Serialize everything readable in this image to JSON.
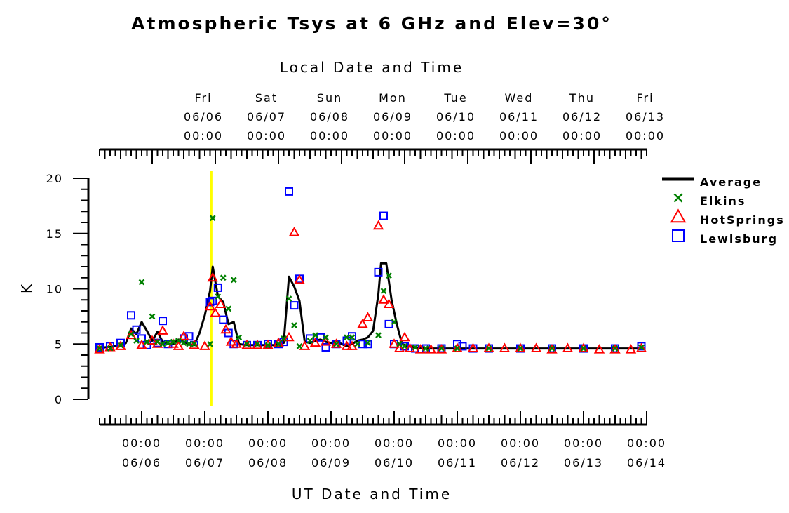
{
  "chart_data": {
    "type": "line",
    "title": "Atmospheric Tsys at 6 GHz and Elev=30°",
    "xlabel_bottom": "UT Date and Time",
    "xlabel_top": "Local Date and Time",
    "ylabel": "K",
    "ylim": [
      0,
      20
    ],
    "yticks": [
      0,
      5,
      10,
      15,
      20
    ],
    "xlim": [
      "2014-06-05T08:00",
      "2014-06-14T00:00"
    ],
    "bottom_ticks": [
      {
        "date": "06/06",
        "time": "00:00"
      },
      {
        "date": "06/07",
        "time": "00:00"
      },
      {
        "date": "06/08",
        "time": "00:00"
      },
      {
        "date": "06/09",
        "time": "00:00"
      },
      {
        "date": "06/10",
        "time": "00:00"
      },
      {
        "date": "06/11",
        "time": "00:00"
      },
      {
        "date": "06/12",
        "time": "00:00"
      },
      {
        "date": "06/13",
        "time": "00:00"
      },
      {
        "date": "06/14",
        "time": "00:00"
      }
    ],
    "top_ticks": [
      {
        "day": "Fri",
        "date": "06/06",
        "time": "00:00"
      },
      {
        "day": "Sat",
        "date": "06/07",
        "time": "00:00"
      },
      {
        "day": "Sun",
        "date": "06/08",
        "time": "00:00"
      },
      {
        "day": "Mon",
        "date": "06/09",
        "time": "00:00"
      },
      {
        "day": "Tue",
        "date": "06/10",
        "time": "00:00"
      },
      {
        "day": "Wed",
        "date": "06/11",
        "time": "00:00"
      },
      {
        "day": "Thu",
        "date": "06/12",
        "time": "00:00"
      },
      {
        "day": "Fri",
        "date": "06/13",
        "time": "00:00"
      }
    ],
    "marker_line": {
      "x": "2014-06-07T02:30",
      "color": "#ffff00"
    },
    "legend": {
      "position": "right"
    },
    "series": [
      {
        "name": "Average",
        "style": "line",
        "color": "#000000",
        "points": [
          [
            "2014-06-05T08:00",
            4.6
          ],
          [
            "2014-06-05T10:00",
            4.7
          ],
          [
            "2014-06-05T14:00",
            4.8
          ],
          [
            "2014-06-05T18:00",
            5.1
          ],
          [
            "2014-06-05T20:00",
            6.4
          ],
          [
            "2014-06-05T22:00",
            5.9
          ],
          [
            "2014-06-06T00:00",
            7.0
          ],
          [
            "2014-06-06T02:00",
            6.2
          ],
          [
            "2014-06-06T04:00",
            5.3
          ],
          [
            "2014-06-06T06:00",
            6.1
          ],
          [
            "2014-06-06T08:00",
            5.2
          ],
          [
            "2014-06-06T10:00",
            5.0
          ],
          [
            "2014-06-06T12:00",
            5.0
          ],
          [
            "2014-06-06T14:00",
            5.4
          ],
          [
            "2014-06-06T16:00",
            5.2
          ],
          [
            "2014-06-06T18:00",
            5.0
          ],
          [
            "2014-06-06T20:00",
            4.9
          ],
          [
            "2014-06-06T22:00",
            6.0
          ],
          [
            "2014-06-07T00:00",
            7.6
          ],
          [
            "2014-06-07T02:00",
            9.8
          ],
          [
            "2014-06-07T03:00",
            12.0
          ],
          [
            "2014-06-07T05:00",
            9.3
          ],
          [
            "2014-06-07T07:00",
            8.8
          ],
          [
            "2014-06-07T09:00",
            6.8
          ],
          [
            "2014-06-07T11:00",
            7.0
          ],
          [
            "2014-06-07T13:00",
            5.0
          ],
          [
            "2014-06-07T16:00",
            4.9
          ],
          [
            "2014-06-07T20:00",
            4.9
          ],
          [
            "2014-06-08T00:00",
            4.9
          ],
          [
            "2014-06-08T02:00",
            4.9
          ],
          [
            "2014-06-08T04:00",
            5.0
          ],
          [
            "2014-06-08T06:00",
            5.1
          ],
          [
            "2014-06-08T08:00",
            11.1
          ],
          [
            "2014-06-08T10:00",
            10.2
          ],
          [
            "2014-06-08T12:00",
            8.9
          ],
          [
            "2014-06-08T14:00",
            5.2
          ],
          [
            "2014-06-08T16:00",
            5.1
          ],
          [
            "2014-06-08T18:00",
            5.3
          ],
          [
            "2014-06-08T20:00",
            5.4
          ],
          [
            "2014-06-08T22:00",
            5.2
          ],
          [
            "2014-06-09T00:00",
            5.1
          ],
          [
            "2014-06-09T02:00",
            5.3
          ],
          [
            "2014-06-09T04:00",
            5.0
          ],
          [
            "2014-06-09T06:00",
            4.8
          ],
          [
            "2014-06-09T08:00",
            5.0
          ],
          [
            "2014-06-09T10:00",
            5.3
          ],
          [
            "2014-06-09T12:00",
            5.4
          ],
          [
            "2014-06-09T14:00",
            5.6
          ],
          [
            "2014-06-09T16:00",
            6.2
          ],
          [
            "2014-06-09T18:00",
            9.5
          ],
          [
            "2014-06-09T19:00",
            12.3
          ],
          [
            "2014-06-09T21:00",
            12.3
          ],
          [
            "2014-06-09T23:00",
            9.0
          ],
          [
            "2014-06-10T01:00",
            6.8
          ],
          [
            "2014-06-10T03:00",
            5.0
          ],
          [
            "2014-06-10T05:00",
            4.8
          ],
          [
            "2014-06-10T08:00",
            4.7
          ],
          [
            "2014-06-10T12:00",
            4.6
          ],
          [
            "2014-06-10T18:00",
            4.6
          ],
          [
            "2014-06-11T00:00",
            4.6
          ],
          [
            "2014-06-11T12:00",
            4.6
          ],
          [
            "2014-06-12T00:00",
            4.6
          ],
          [
            "2014-06-12T12:00",
            4.6
          ],
          [
            "2014-06-13T00:00",
            4.6
          ],
          [
            "2014-06-13T12:00",
            4.6
          ],
          [
            "2014-06-13T22:00",
            4.6
          ]
        ]
      },
      {
        "name": "Elkins",
        "style": "marker-x",
        "color": "#008000",
        "points": [
          [
            "2014-06-05T08:00",
            4.6
          ],
          [
            "2014-06-05T12:00",
            4.6
          ],
          [
            "2014-06-05T16:00",
            4.9
          ],
          [
            "2014-06-05T20:00",
            5.9
          ],
          [
            "2014-06-05T22:00",
            5.3
          ],
          [
            "2014-06-06T00:00",
            10.6
          ],
          [
            "2014-06-06T02:00",
            5.2
          ],
          [
            "2014-06-06T04:00",
            7.5
          ],
          [
            "2014-06-06T06:00",
            5.2
          ],
          [
            "2014-06-06T08:00",
            5.0
          ],
          [
            "2014-06-06T10:00",
            5.1
          ],
          [
            "2014-06-06T12:00",
            5.2
          ],
          [
            "2014-06-06T14:00",
            5.3
          ],
          [
            "2014-06-06T16:00",
            5.1
          ],
          [
            "2014-06-06T18:00",
            5.0
          ],
          [
            "2014-06-06T20:00",
            5.0
          ],
          [
            "2014-06-07T02:00",
            5.0
          ],
          [
            "2014-06-07T03:00",
            16.4
          ],
          [
            "2014-06-07T05:00",
            9.3
          ],
          [
            "2014-06-07T07:00",
            11.0
          ],
          [
            "2014-06-07T09:00",
            8.2
          ],
          [
            "2014-06-07T11:00",
            10.8
          ],
          [
            "2014-06-07T13:00",
            5.6
          ],
          [
            "2014-06-07T16:00",
            5.0
          ],
          [
            "2014-06-07T20:00",
            5.0
          ],
          [
            "2014-06-08T00:00",
            4.9
          ],
          [
            "2014-06-08T04:00",
            5.0
          ],
          [
            "2014-06-08T06:00",
            5.5
          ],
          [
            "2014-06-08T08:00",
            9.1
          ],
          [
            "2014-06-08T10:00",
            6.7
          ],
          [
            "2014-06-08T12:00",
            4.8
          ],
          [
            "2014-06-08T16:00",
            5.3
          ],
          [
            "2014-06-08T18:00",
            5.8
          ],
          [
            "2014-06-08T22:00",
            5.6
          ],
          [
            "2014-06-09T02:00",
            5.0
          ],
          [
            "2014-06-09T06:00",
            5.6
          ],
          [
            "2014-06-09T08:00",
            5.6
          ],
          [
            "2014-06-09T10:00",
            5.0
          ],
          [
            "2014-06-09T14:00",
            5.1
          ],
          [
            "2014-06-09T18:00",
            5.8
          ],
          [
            "2014-06-09T20:00",
            9.8
          ],
          [
            "2014-06-09T22:00",
            11.2
          ],
          [
            "2014-06-10T00:00",
            7.0
          ],
          [
            "2014-06-10T02:00",
            5.0
          ],
          [
            "2014-06-10T04:00",
            4.8
          ],
          [
            "2014-06-10T08:00",
            4.7
          ],
          [
            "2014-06-10T12:00",
            4.6
          ],
          [
            "2014-06-10T18:00",
            4.6
          ],
          [
            "2014-06-11T00:00",
            4.6
          ],
          [
            "2014-06-11T12:00",
            4.6
          ],
          [
            "2014-06-12T00:00",
            4.6
          ],
          [
            "2014-06-12T12:00",
            4.6
          ],
          [
            "2014-06-13T00:00",
            4.6
          ],
          [
            "2014-06-13T12:00",
            4.6
          ],
          [
            "2014-06-13T22:00",
            4.7
          ]
        ]
      },
      {
        "name": "HotSprings",
        "style": "marker-triangle",
        "color": "#ff0000",
        "points": [
          [
            "2014-06-05T08:00",
            4.5
          ],
          [
            "2014-06-05T12:00",
            4.7
          ],
          [
            "2014-06-05T16:00",
            4.8
          ],
          [
            "2014-06-05T20:00",
            5.8
          ],
          [
            "2014-06-06T00:00",
            4.9
          ],
          [
            "2014-06-06T04:00",
            5.3
          ],
          [
            "2014-06-06T06:00",
            5.0
          ],
          [
            "2014-06-06T08:00",
            6.2
          ],
          [
            "2014-06-06T12:00",
            5.0
          ],
          [
            "2014-06-06T14:00",
            4.8
          ],
          [
            "2014-06-06T16:00",
            5.7
          ],
          [
            "2014-06-06T20:00",
            4.9
          ],
          [
            "2014-06-07T00:00",
            4.8
          ],
          [
            "2014-06-07T02:00",
            8.4
          ],
          [
            "2014-06-07T03:00",
            11.0
          ],
          [
            "2014-06-07T04:00",
            7.8
          ],
          [
            "2014-06-07T06:00",
            8.6
          ],
          [
            "2014-06-07T08:00",
            6.3
          ],
          [
            "2014-06-07T10:00",
            5.2
          ],
          [
            "2014-06-07T12:00",
            5.0
          ],
          [
            "2014-06-07T16:00",
            4.9
          ],
          [
            "2014-06-07T20:00",
            4.9
          ],
          [
            "2014-06-08T00:00",
            4.9
          ],
          [
            "2014-06-08T04:00",
            5.1
          ],
          [
            "2014-06-08T08:00",
            5.6
          ],
          [
            "2014-06-08T10:00",
            15.1
          ],
          [
            "2014-06-08T12:00",
            10.8
          ],
          [
            "2014-06-08T14:00",
            4.8
          ],
          [
            "2014-06-08T18:00",
            5.1
          ],
          [
            "2014-06-08T22:00",
            5.2
          ],
          [
            "2014-06-09T02:00",
            5.0
          ],
          [
            "2014-06-09T06:00",
            4.8
          ],
          [
            "2014-06-09T08:00",
            4.8
          ],
          [
            "2014-06-09T12:00",
            6.8
          ],
          [
            "2014-06-09T14:00",
            7.4
          ],
          [
            "2014-06-09T18:00",
            15.7
          ],
          [
            "2014-06-09T20:00",
            9.0
          ],
          [
            "2014-06-09T22:00",
            8.6
          ],
          [
            "2014-06-10T00:00",
            5.0
          ],
          [
            "2014-06-10T02:00",
            4.6
          ],
          [
            "2014-06-10T04:00",
            5.6
          ],
          [
            "2014-06-10T06:00",
            4.6
          ],
          [
            "2014-06-10T10:00",
            4.5
          ],
          [
            "2014-06-10T14:00",
            4.5
          ],
          [
            "2014-06-10T18:00",
            4.5
          ],
          [
            "2014-06-11T00:00",
            4.6
          ],
          [
            "2014-06-11T06:00",
            4.6
          ],
          [
            "2014-06-11T12:00",
            4.6
          ],
          [
            "2014-06-11T18:00",
            4.6
          ],
          [
            "2014-06-12T00:00",
            4.6
          ],
          [
            "2014-06-12T06:00",
            4.6
          ],
          [
            "2014-06-12T12:00",
            4.5
          ],
          [
            "2014-06-12T18:00",
            4.6
          ],
          [
            "2014-06-13T00:00",
            4.6
          ],
          [
            "2014-06-13T06:00",
            4.5
          ],
          [
            "2014-06-13T12:00",
            4.5
          ],
          [
            "2014-06-13T18:00",
            4.5
          ],
          [
            "2014-06-13T22:00",
            4.6
          ]
        ]
      },
      {
        "name": "Lewisburg",
        "style": "marker-square",
        "color": "#0000ff",
        "points": [
          [
            "2014-06-05T08:00",
            4.7
          ],
          [
            "2014-06-05T12:00",
            4.8
          ],
          [
            "2014-06-05T16:00",
            5.1
          ],
          [
            "2014-06-05T20:00",
            7.6
          ],
          [
            "2014-06-05T22:00",
            6.3
          ],
          [
            "2014-06-06T00:00",
            5.5
          ],
          [
            "2014-06-06T02:00",
            4.9
          ],
          [
            "2014-06-06T06:00",
            5.1
          ],
          [
            "2014-06-06T08:00",
            7.1
          ],
          [
            "2014-06-06T10:00",
            5.0
          ],
          [
            "2014-06-06T16:00",
            5.5
          ],
          [
            "2014-06-06T18:00",
            5.7
          ],
          [
            "2014-06-06T20:00",
            4.9
          ],
          [
            "2014-06-07T02:00",
            8.8
          ],
          [
            "2014-06-07T03:00",
            8.9
          ],
          [
            "2014-06-07T05:00",
            10.1
          ],
          [
            "2014-06-07T07:00",
            7.2
          ],
          [
            "2014-06-07T09:00",
            6.0
          ],
          [
            "2014-06-07T11:00",
            5.0
          ],
          [
            "2014-06-07T16:00",
            4.9
          ],
          [
            "2014-06-07T20:00",
            4.9
          ],
          [
            "2014-06-08T00:00",
            5.0
          ],
          [
            "2014-06-08T04:00",
            5.0
          ],
          [
            "2014-06-08T06:00",
            5.2
          ],
          [
            "2014-06-08T08:00",
            18.8
          ],
          [
            "2014-06-08T10:00",
            8.5
          ],
          [
            "2014-06-08T12:00",
            10.9
          ],
          [
            "2014-06-08T16:00",
            5.5
          ],
          [
            "2014-06-08T20:00",
            5.6
          ],
          [
            "2014-06-08T22:00",
            4.7
          ],
          [
            "2014-06-09T02:00",
            5.0
          ],
          [
            "2014-06-09T06:00",
            5.3
          ],
          [
            "2014-06-09T08:00",
            5.7
          ],
          [
            "2014-06-09T12:00",
            5.0
          ],
          [
            "2014-06-09T14:00",
            5.0
          ],
          [
            "2014-06-09T18:00",
            11.5
          ],
          [
            "2014-06-09T20:00",
            16.6
          ],
          [
            "2014-06-09T22:00",
            6.8
          ],
          [
            "2014-06-10T00:00",
            5.0
          ],
          [
            "2014-06-10T04:00",
            4.8
          ],
          [
            "2014-06-10T08:00",
            4.6
          ],
          [
            "2014-06-10T12:00",
            4.6
          ],
          [
            "2014-06-10T18:00",
            4.6
          ],
          [
            "2014-06-11T00:00",
            5.0
          ],
          [
            "2014-06-11T02:00",
            4.8
          ],
          [
            "2014-06-11T06:00",
            4.6
          ],
          [
            "2014-06-11T12:00",
            4.6
          ],
          [
            "2014-06-12T00:00",
            4.6
          ],
          [
            "2014-06-12T12:00",
            4.6
          ],
          [
            "2014-06-13T00:00",
            4.6
          ],
          [
            "2014-06-13T12:00",
            4.6
          ],
          [
            "2014-06-13T22:00",
            4.8
          ]
        ]
      }
    ]
  }
}
